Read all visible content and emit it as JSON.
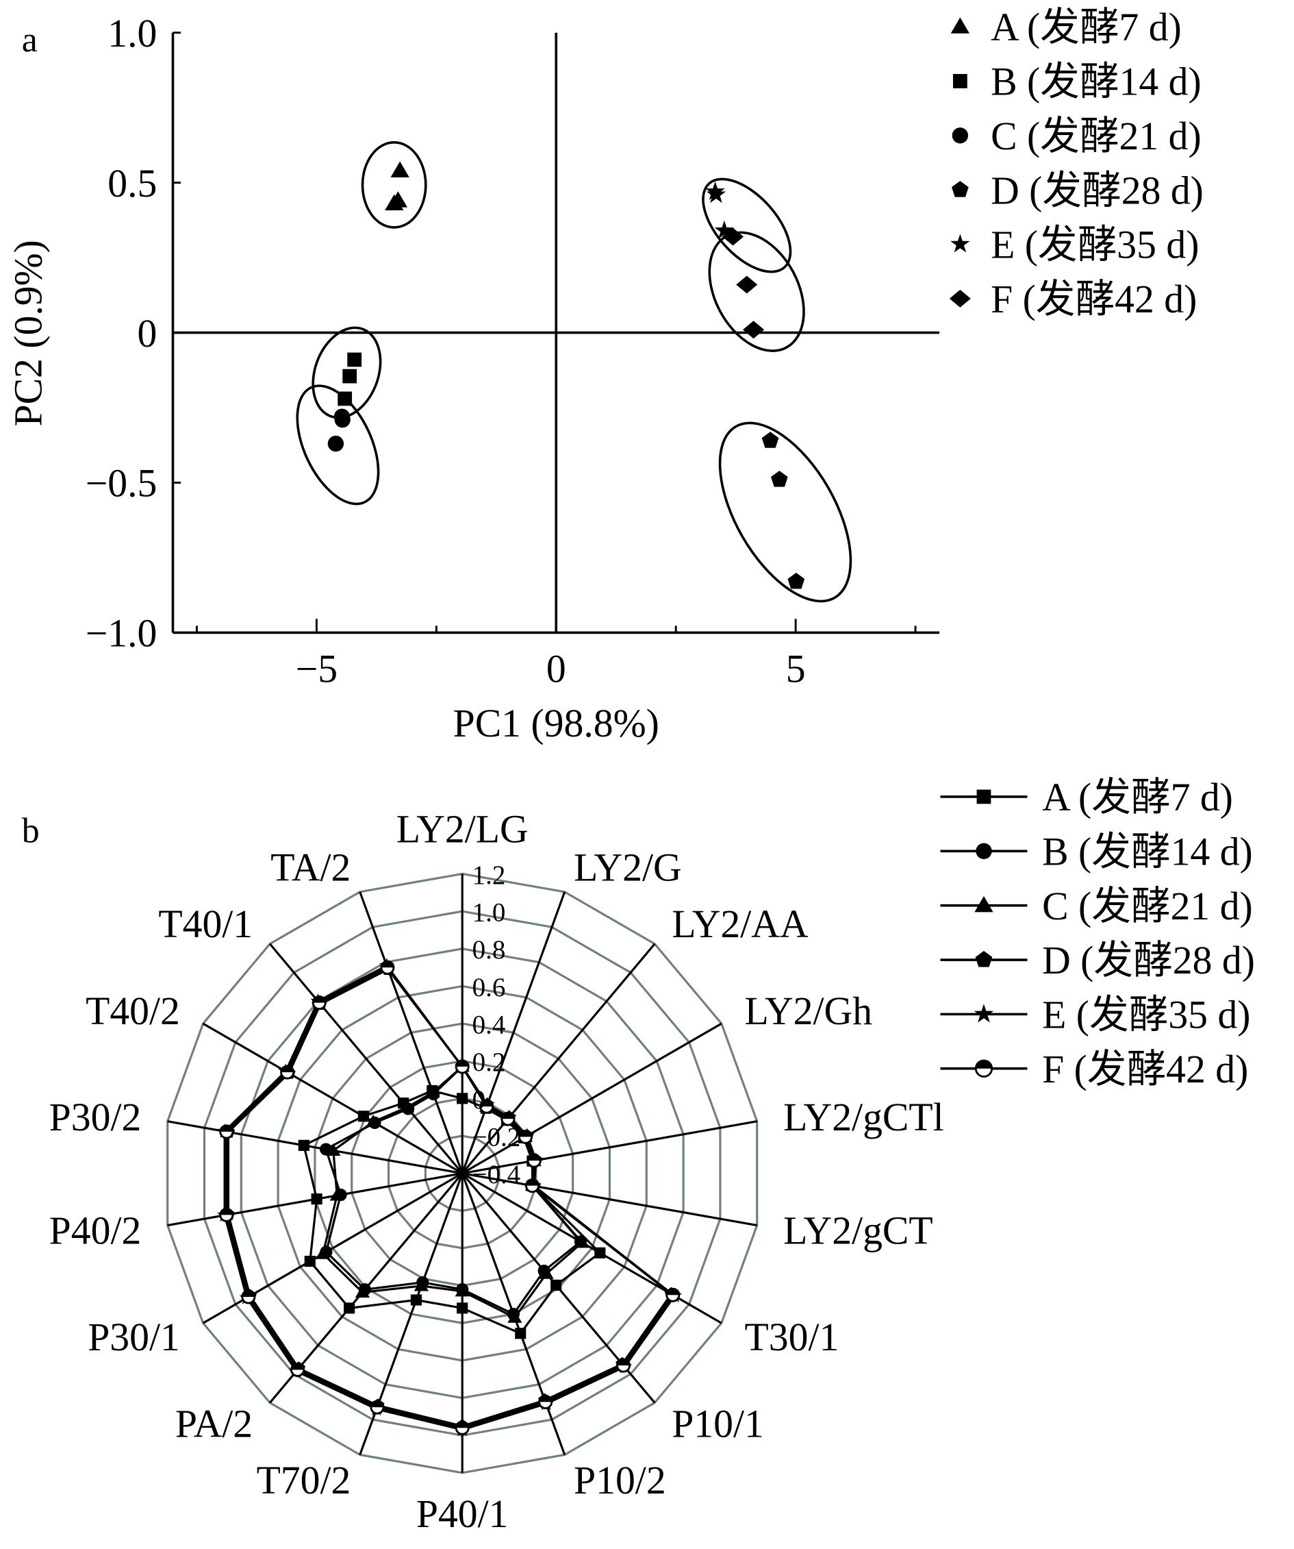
{
  "chart_data": [
    {
      "type": "scatter",
      "panel_label": "a",
      "xlabel": "PC1 (98.8%)",
      "ylabel": "PC2 (0.9%)",
      "xlim": [
        -8,
        8
      ],
      "ylim": [
        -1.0,
        1.0
      ],
      "xticks": [
        {
          "v": -5,
          "label": "−5"
        },
        {
          "v": 0,
          "label": "0"
        },
        {
          "v": 5,
          "label": "5"
        }
      ],
      "yticks": [
        {
          "v": 1.0,
          "label": "1.0"
        },
        {
          "v": 0.5,
          "label": "0.5"
        },
        {
          "v": 0,
          "label": "0"
        },
        {
          "v": -0.5,
          "label": "−0.5"
        },
        {
          "v": -1.0,
          "label": "−1.0"
        }
      ],
      "grid": false,
      "legend_position": "right",
      "series": [
        {
          "name": "A (发酵7 d)",
          "marker": "triangle",
          "points": [
            [
              -3.26,
              0.54
            ],
            [
              -3.38,
              0.43
            ],
            [
              -3.3,
              0.44
            ]
          ]
        },
        {
          "name": "B (发酵14 d)",
          "marker": "square",
          "points": [
            [
              -4.21,
              -0.09
            ],
            [
              -4.31,
              -0.145
            ],
            [
              -4.41,
              -0.22
            ]
          ]
        },
        {
          "name": "C (发酵21 d)",
          "marker": "circle",
          "points": [
            [
              -4.47,
              -0.28
            ],
            [
              -4.6,
              -0.37
            ],
            [
              -4.46,
              -0.29
            ]
          ]
        },
        {
          "name": "D (发酵28 d)",
          "marker": "pentagon",
          "points": [
            [
              4.47,
              -0.36
            ],
            [
              4.66,
              -0.49
            ],
            [
              5.01,
              -0.83
            ]
          ]
        },
        {
          "name": "E (发酵35 d)",
          "marker": "star",
          "points": [
            [
              3.32,
              0.47
            ],
            [
              3.51,
              0.34
            ],
            [
              3.34,
              0.46
            ]
          ]
        },
        {
          "name": "F (发酵42 d)",
          "marker": "diamond",
          "points": [
            [
              3.69,
              0.32
            ],
            [
              3.98,
              0.16
            ],
            [
              4.12,
              0.01
            ]
          ]
        }
      ]
    },
    {
      "type": "radar",
      "panel_label": "b",
      "axes": [
        "LY2/LG",
        "LY2/G",
        "LY2/AA",
        "LY2/Gh",
        "LY2/gCTl",
        "LY2/gCT",
        "T30/1",
        "P10/1",
        "P10/2",
        "P40/1",
        "T70/2",
        "PA/2",
        "P30/1",
        "P40/2",
        "P30/2",
        "T40/2",
        "T40/1",
        "TA/2"
      ],
      "rlim": [
        -0.4,
        1.2
      ],
      "rticks": [
        "−0.4",
        "−0.2",
        "0",
        "0.2",
        "0.4",
        "0.6",
        "0.8",
        "1.0",
        "1.2"
      ],
      "legend_position": "top-right",
      "series": [
        {
          "name": "A (发酵7 d)",
          "marker": "square",
          "values": [
            0.0,
            -0.03,
            -0.03,
            -0.02,
            -0.02,
            -0.02,
            0.45,
            0.38,
            0.51,
            0.32,
            0.32,
            0.54,
            0.54,
            0.39,
            0.46,
            0.21,
            0.09,
            0.07
          ]
        },
        {
          "name": "B (发酵14 d)",
          "marker": "circle",
          "values": [
            0.17,
            -0.02,
            -0.02,
            -0.01,
            -0.01,
            -0.02,
            0.33,
            0.28,
            0.4,
            0.22,
            0.22,
            0.41,
            0.44,
            0.26,
            0.34,
            0.14,
            0.05,
            0.05
          ]
        },
        {
          "name": "C (发酵21 d)",
          "marker": "triangle",
          "values": [
            0.17,
            -0.02,
            -0.02,
            -0.01,
            -0.01,
            -0.02,
            0.34,
            0.3,
            0.42,
            0.23,
            0.24,
            0.43,
            0.46,
            0.28,
            0.3,
            0.15,
            0.06,
            0.06
          ]
        },
        {
          "name": "D (发酵28 d)",
          "marker": "pentagon",
          "values": [
            0.17,
            -0.01,
            -0.01,
            0.0,
            0.0,
            -0.01,
            0.89,
            0.93,
            0.89,
            0.95,
            0.92,
            0.96,
            0.91,
            0.87,
            0.87,
            0.67,
            0.78,
            0.76
          ]
        },
        {
          "name": "E (发酵35 d)",
          "marker": "star",
          "values": [
            0.17,
            -0.01,
            -0.01,
            0.0,
            0.0,
            -0.01,
            0.91,
            0.95,
            0.91,
            0.97,
            0.94,
            0.98,
            0.93,
            0.89,
            0.89,
            0.69,
            0.8,
            0.78
          ]
        },
        {
          "name": "F (发酵42 d)",
          "marker": "half-circle",
          "values": [
            0.17,
            -0.02,
            -0.02,
            -0.01,
            -0.01,
            -0.02,
            0.9,
            0.94,
            0.9,
            0.96,
            0.93,
            0.97,
            0.92,
            0.88,
            0.88,
            0.68,
            0.79,
            0.77
          ]
        }
      ]
    }
  ],
  "colors": {
    "ink": "#000000",
    "radar_grid": "#6e7f87"
  }
}
